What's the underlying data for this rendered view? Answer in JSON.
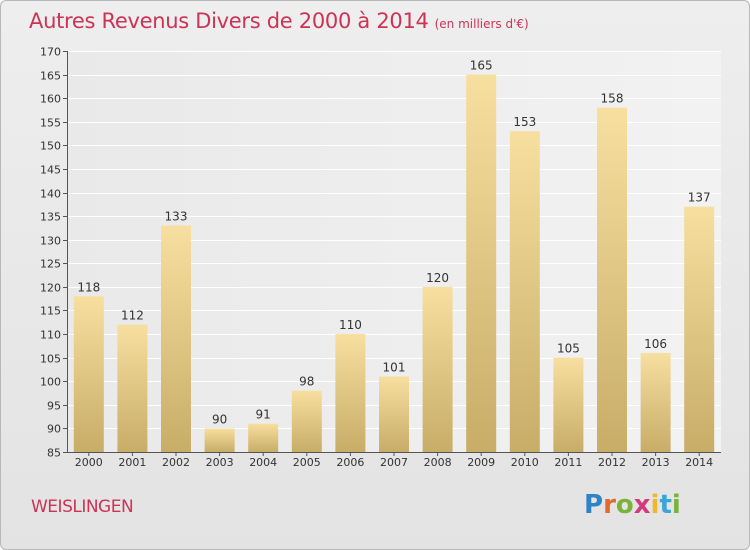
{
  "header": {
    "title": "Autres Revenus Divers de 2000 à 2014",
    "subtitle": "(en milliers d'€)"
  },
  "footer": {
    "commune": "WEISLINGEN",
    "logo": [
      "P",
      "r",
      "o",
      "x",
      "i",
      "t",
      "i"
    ]
  },
  "colors": {
    "title": "#cc3355",
    "bar_top": "#f7dfa0",
    "bar_bottom": "#c8ad68"
  },
  "chart_data": {
    "type": "bar",
    "title": "Autres Revenus Divers de 2000 à 2014",
    "subtitle": "(en milliers d'€)",
    "xlabel": "",
    "ylabel": "",
    "ylim": [
      85,
      170
    ],
    "yticks": [
      85,
      90,
      95,
      100,
      105,
      110,
      115,
      120,
      125,
      130,
      135,
      140,
      145,
      150,
      155,
      160,
      165,
      170
    ],
    "grid": "horizontal",
    "categories": [
      "2000",
      "2001",
      "2002",
      "2003",
      "2004",
      "2005",
      "2006",
      "2007",
      "2008",
      "2009",
      "2010",
      "2011",
      "2012",
      "2013",
      "2014"
    ],
    "values": [
      118,
      112,
      133,
      90,
      91,
      98,
      110,
      101,
      120,
      165,
      153,
      105,
      158,
      106,
      137
    ]
  }
}
